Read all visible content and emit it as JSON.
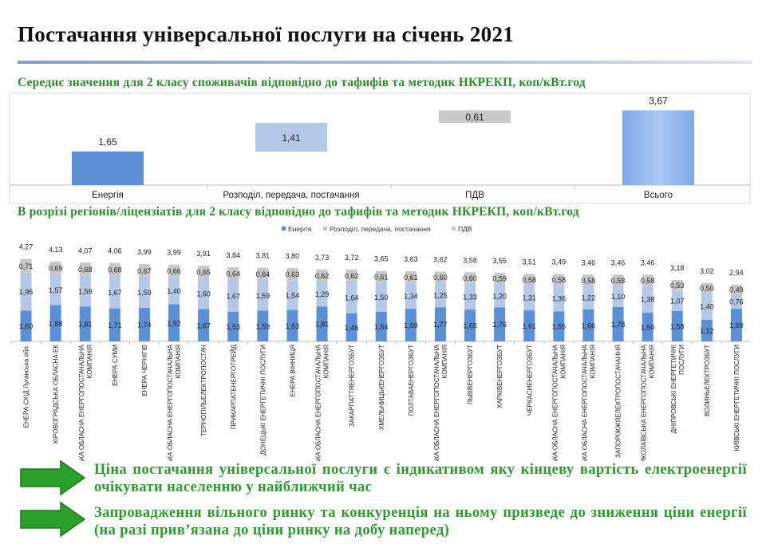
{
  "title": "Постачання універсальної послуги на січень 2021",
  "subtitle1": "Середнє значення для 2 класу споживачів відповідно до тафифів та методик НКРЕКП, коп/кВт.год",
  "subtitle2": "В розрізі регіонів/ліцензіатів для 2 класу відповідно до тафифів та методик НКРЕКП, коп/кВт.год",
  "messages": [
    "Ціна постачання універсальної послуги є індикативом яку кінцеву вартість електроенергії очікувати населенню у найближчий час",
    "Запровадження вільного ринку та конкуренція на ньому призведе до зниження ціни енергії (на разі прив’язана до ціни ринку на добу наперед)"
  ],
  "colors": {
    "energy": "#5b8fd6",
    "distribution": "#b4c9e8",
    "vat": "#c8c8c8",
    "green": "#2e9a2e"
  },
  "chart_data": [
    {
      "type": "bar",
      "subtype": "waterfall",
      "categories": [
        "Енергія",
        "Розподіл, передача, постачання",
        "ПДВ",
        "Всього"
      ],
      "values": [
        1.65,
        1.41,
        0.61,
        3.67
      ],
      "labels": [
        "1,65",
        "1,41",
        "0,61",
        "3,67"
      ],
      "ylim": [
        0,
        4
      ]
    },
    {
      "type": "bar",
      "subtype": "stacked",
      "legend": [
        "Енергія",
        "Розподіл, передача, постачання",
        "ПДВ"
      ],
      "legend_position": "top-right",
      "categories": [
        "ЕНЕРА СХІД Луганська обл.",
        "КІРОВОГРАДСЬКА ОБЛАСНА ЕК",
        "ЖИТОМИРСЬКА ОБЛАСНА ЕНЕРГОПОСТАЧАЛЬНА КОМПАНІЯ",
        "ЕНЕРА СУМИ",
        "ЕНЕРА ЧЕРНІГІВ",
        "ХЕРСОНСЬКА ОБЛАСНА ЕНЕРГОПОСТАЧАЛЬНА КОМПАНІЯ",
        "ТЕРНОПІЛЬЕЛЕКТРОПОСТАЧ",
        "ПРИКАРПАТЕНЕРГОТРЕЙД",
        "ДОНЕЦЬКІ ЕНЕРГЕТИЧНІ ПОСЛУГИ",
        "ЕНЕРА ВІННИЦЯ",
        "РІВНЕНСЬКА ОБЛАСНА ЕНЕРГОПОСТАЧАЛЬНА КОМПАНІЯ",
        "ЗАКАРПАТТЯЕНЕРГОЗБУТ",
        "ХМЕЛЬНИЦЬКЕНЕРГОЗБУТ",
        "ПОЛТАВАЕНЕРГОЗБУТ",
        "ОДЕСЬКА ОБЛАСНА ЕНЕРГОПОСТАЧАЛЬНА КОМПАНІЯ",
        "ЛЬВІВЕНЕРГОЗБУТ",
        "ХАРКІВЕНЕРГОЗБУТ",
        "ЧЕРКАСИЕНЕРГОЗБУТ",
        "ЧЕРНІВЕЦЬКА ОБЛАСНА ЕНЕРГОПОСТАЧАЛЬНА КОМПАНІЯ",
        "КИЇВСЬКА ОБЛАСНА ЕНЕРГОПОСТАЧАЛЬНА КОМПАНІЯ",
        "ЗАПОРІЖЖЯЕЛЕКТРОПОСТАЧАННЯ",
        "МИКОЛАЇВСЬКА ЕНЕРГОПОСТАЧАЛЬНА КОМПАНІЯ",
        "ДНІПРОВСЬКІ ЕНЕРГЕТИЧНІ ПОСЛУГИ",
        "ВОЛИНЬЕЛЕКТРОЗБУТ",
        "КИЇВСЬКІ ЕНЕРГЕТИЧНІ ПОСЛУГИ"
      ],
      "series": [
        {
          "name": "Енергія",
          "values": [
            1.6,
            1.88,
            1.81,
            1.71,
            1.74,
            1.92,
            1.67,
            1.53,
            1.59,
            1.63,
            1.81,
            1.46,
            1.54,
            1.69,
            1.77,
            1.65,
            1.76,
            1.61,
            1.55,
            1.66,
            1.78,
            1.5,
            1.58,
            1.12,
            1.69
          ]
        },
        {
          "name": "Розподіл, передача, постачання",
          "values": [
            1.96,
            1.57,
            1.59,
            1.67,
            1.59,
            1.4,
            1.6,
            1.67,
            1.59,
            1.54,
            1.29,
            1.64,
            1.5,
            1.34,
            1.25,
            1.33,
            1.2,
            1.31,
            1.36,
            1.22,
            1.1,
            1.38,
            1.07,
            1.4,
            0.76
          ]
        },
        {
          "name": "ПДВ",
          "values": [
            0.71,
            0.69,
            0.68,
            0.68,
            0.67,
            0.66,
            0.65,
            0.64,
            0.64,
            0.63,
            0.62,
            0.62,
            0.61,
            0.61,
            0.6,
            0.6,
            0.59,
            0.58,
            0.58,
            0.58,
            0.58,
            0.58,
            0.53,
            0.5,
            0.49
          ]
        }
      ],
      "totals": [
        4.27,
        4.13,
        4.07,
        4.06,
        3.99,
        3.99,
        3.91,
        3.84,
        3.81,
        3.8,
        3.73,
        3.72,
        3.65,
        3.63,
        3.62,
        3.58,
        3.55,
        3.51,
        3.49,
        3.46,
        3.46,
        3.46,
        3.18,
        3.02,
        2.94
      ]
    }
  ]
}
